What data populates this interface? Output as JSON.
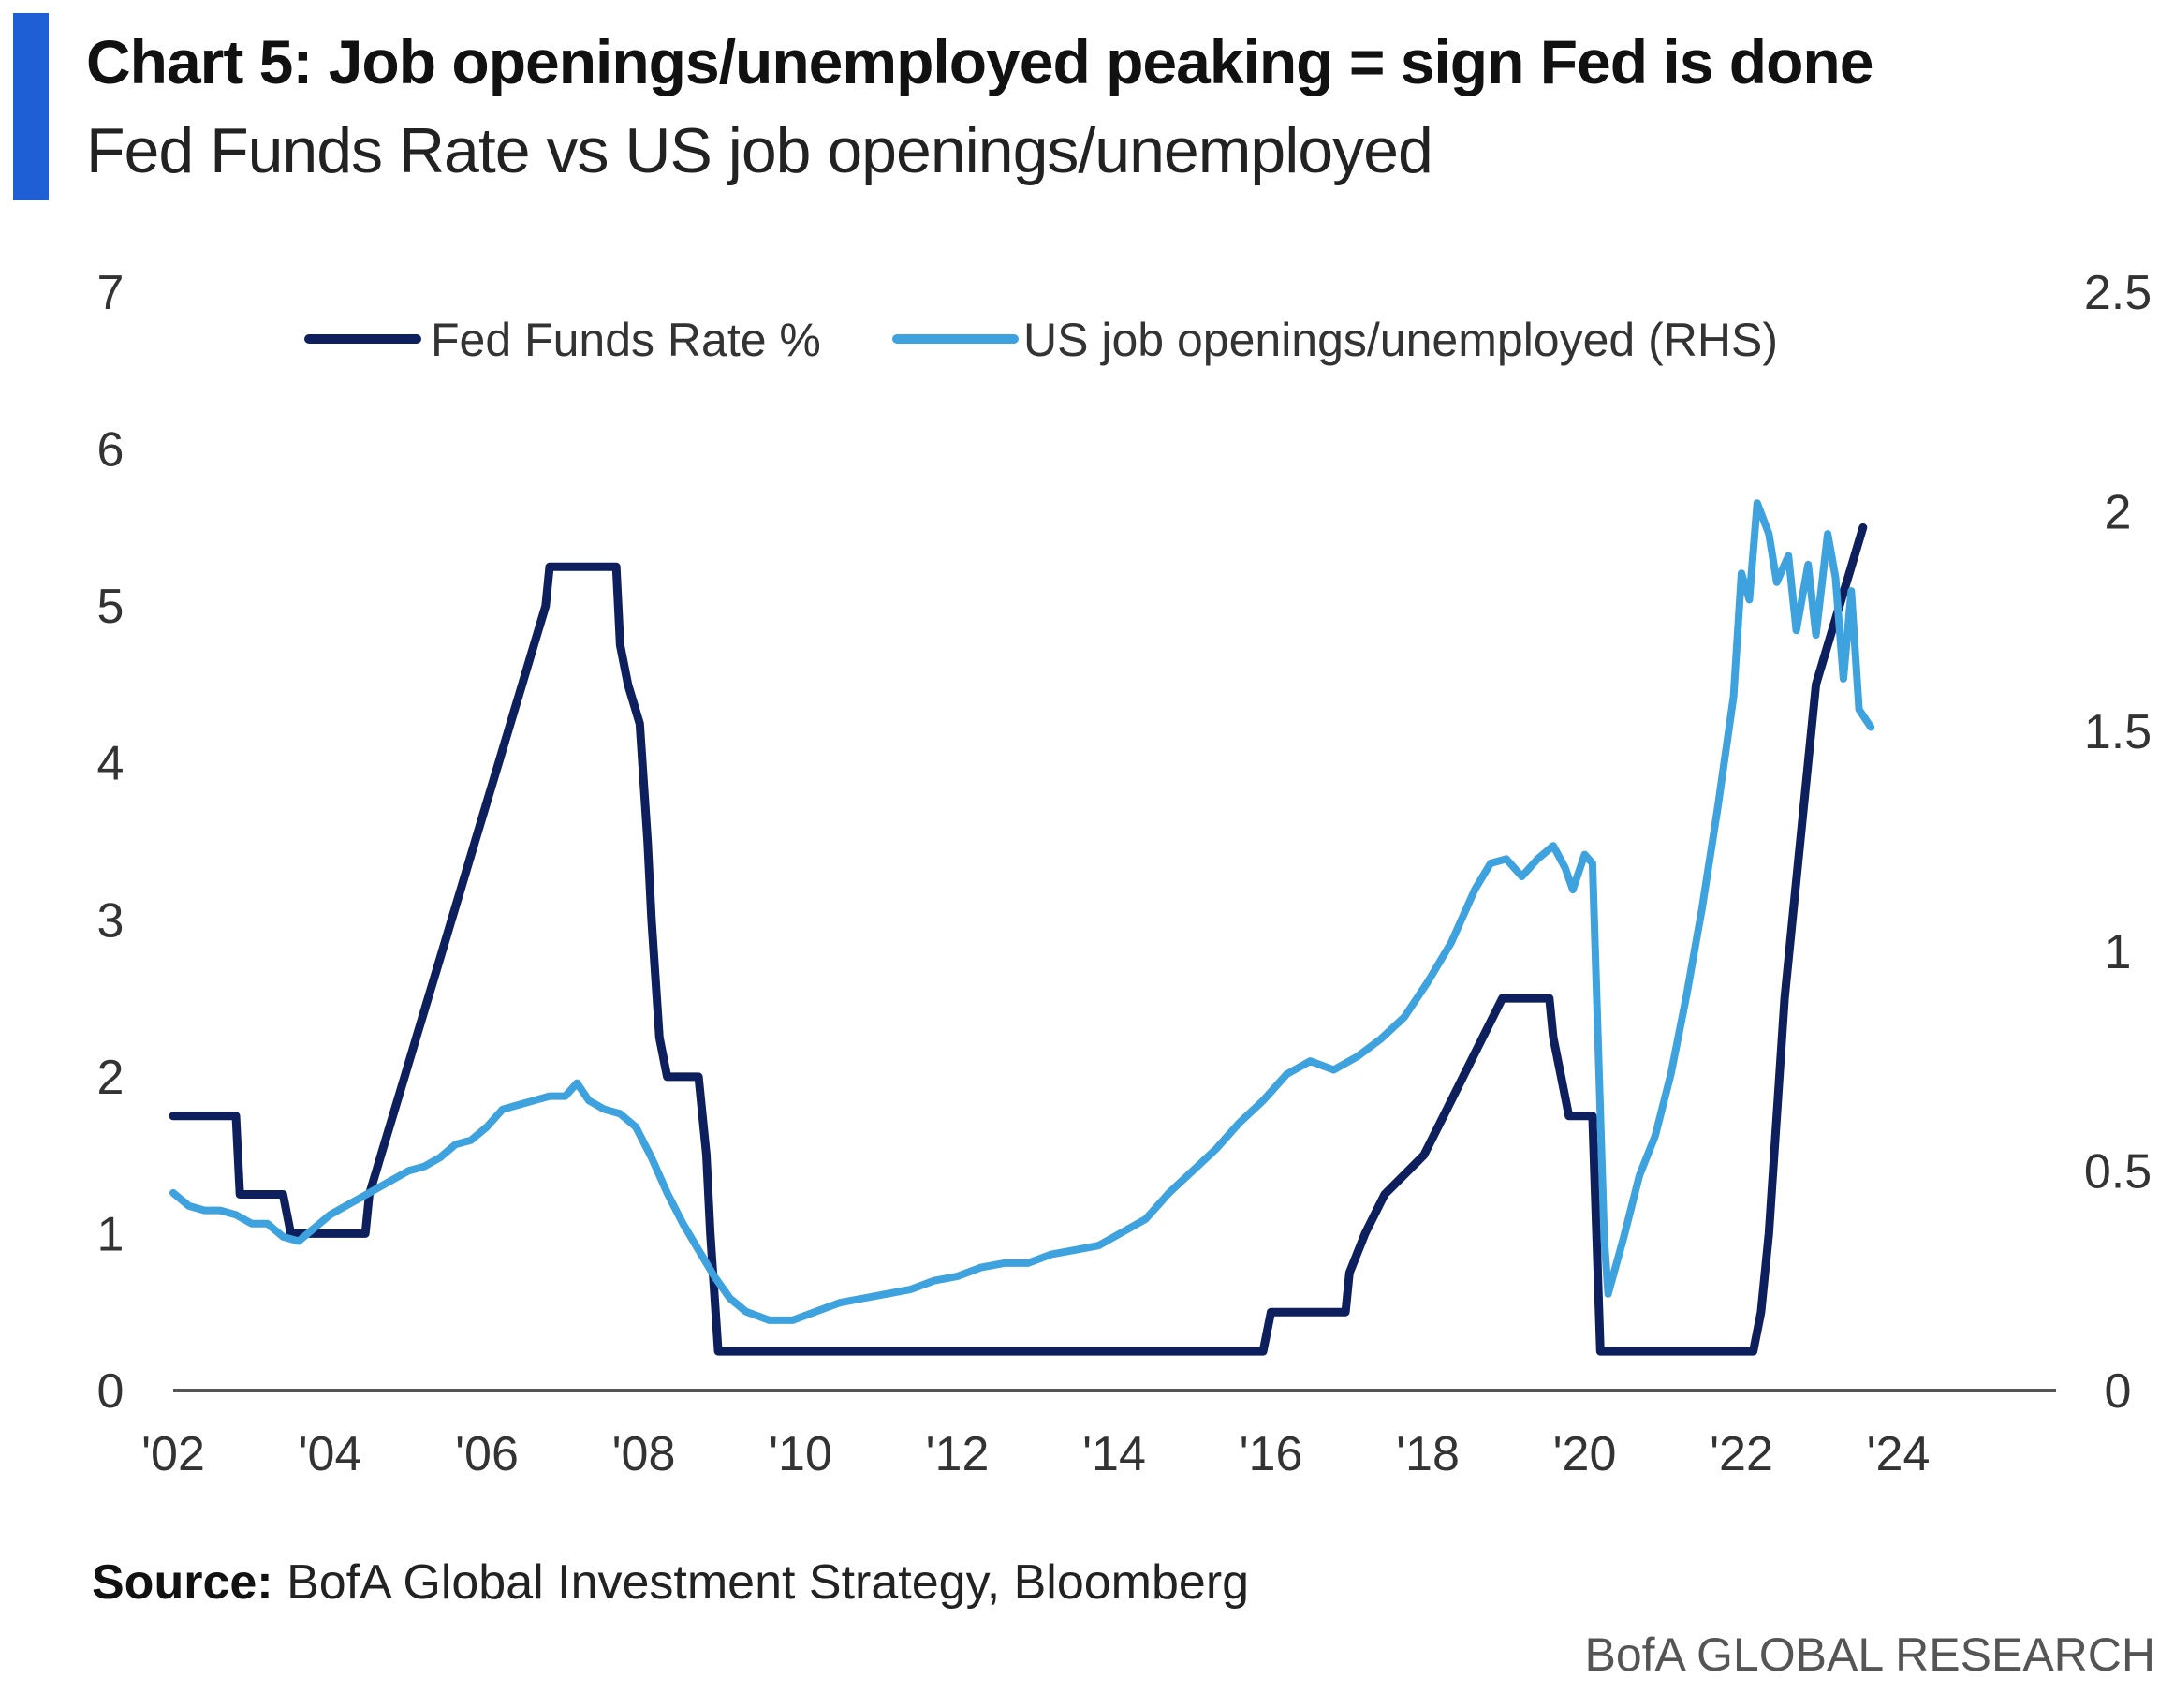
{
  "header": {
    "title": "Chart 5: Job openings/unemployed peaking = sign Fed is done",
    "subtitle": "Fed Funds Rate vs US job openings/unemployed",
    "accent_color": "#1f5fd6"
  },
  "footer": {
    "source_label": "Source:",
    "source_text": "BofA Global Investment Strategy, Bloomberg",
    "brand": "BofA GLOBAL RESEARCH"
  },
  "chart_data": {
    "type": "line",
    "title": "Chart 5: Job openings/unemployed peaking = sign Fed is done",
    "subtitle": "Fed Funds Rate vs US job openings/unemployed",
    "x_tick_labels": [
      "'02",
      "'04",
      "'06",
      "'08",
      "'10",
      "'12",
      "'14",
      "'16",
      "'18",
      "'20",
      "'22",
      "'24"
    ],
    "x_ticks": [
      2002,
      2004,
      2006,
      2008,
      2010,
      2012,
      2014,
      2016,
      2018,
      2020,
      2022,
      2024
    ],
    "xlim": [
      2002,
      2026.0
    ],
    "y_left": {
      "ticks": [
        0,
        1,
        2,
        3,
        4,
        5,
        6,
        7
      ],
      "ylim": [
        0,
        7
      ]
    },
    "y_right": {
      "ticks": [
        "0",
        "0.5",
        "1",
        "1.5",
        "2",
        "2.5"
      ],
      "values": [
        0,
        0.5,
        1,
        1.5,
        2,
        2.5
      ],
      "ylim": [
        0,
        2.5
      ]
    },
    "legend_position": "top",
    "grid": false,
    "series": [
      {
        "name": "Fed Funds Rate %",
        "axis": "left",
        "color": "#0d1f5c",
        "points": [
          [
            2002.0,
            1.75
          ],
          [
            2002.8,
            1.75
          ],
          [
            2002.85,
            1.25
          ],
          [
            2003.4,
            1.25
          ],
          [
            2003.5,
            1.0
          ],
          [
            2004.45,
            1.0
          ],
          [
            2004.5,
            1.25
          ],
          [
            2004.65,
            1.5
          ],
          [
            2004.8,
            1.75
          ],
          [
            2004.95,
            2.0
          ],
          [
            2005.1,
            2.25
          ],
          [
            2005.25,
            2.5
          ],
          [
            2005.4,
            2.75
          ],
          [
            2005.55,
            3.0
          ],
          [
            2005.7,
            3.25
          ],
          [
            2005.85,
            3.5
          ],
          [
            2006.0,
            3.75
          ],
          [
            2006.15,
            4.0
          ],
          [
            2006.3,
            4.25
          ],
          [
            2006.45,
            4.5
          ],
          [
            2006.6,
            4.75
          ],
          [
            2006.75,
            5.0
          ],
          [
            2006.8,
            5.25
          ],
          [
            2007.65,
            5.25
          ],
          [
            2007.7,
            4.75
          ],
          [
            2007.8,
            4.5
          ],
          [
            2007.95,
            4.25
          ],
          [
            2008.05,
            3.5
          ],
          [
            2008.1,
            3.0
          ],
          [
            2008.2,
            2.25
          ],
          [
            2008.3,
            2.0
          ],
          [
            2008.7,
            2.0
          ],
          [
            2008.8,
            1.5
          ],
          [
            2008.85,
            1.0
          ],
          [
            2008.95,
            0.25
          ],
          [
            2015.9,
            0.25
          ],
          [
            2016.0,
            0.5
          ],
          [
            2016.95,
            0.5
          ],
          [
            2017.0,
            0.75
          ],
          [
            2017.2,
            1.0
          ],
          [
            2017.45,
            1.25
          ],
          [
            2017.95,
            1.5
          ],
          [
            2018.2,
            1.75
          ],
          [
            2018.45,
            2.0
          ],
          [
            2018.7,
            2.25
          ],
          [
            2018.95,
            2.5
          ],
          [
            2019.55,
            2.5
          ],
          [
            2019.6,
            2.25
          ],
          [
            2019.7,
            2.0
          ],
          [
            2019.8,
            1.75
          ],
          [
            2020.1,
            1.75
          ],
          [
            2020.2,
            0.25
          ],
          [
            2022.15,
            0.25
          ],
          [
            2022.25,
            0.5
          ],
          [
            2022.35,
            1.0
          ],
          [
            2022.45,
            1.75
          ],
          [
            2022.55,
            2.5
          ],
          [
            2022.7,
            3.25
          ],
          [
            2022.85,
            4.0
          ],
          [
            2022.95,
            4.5
          ],
          [
            2023.1,
            4.75
          ],
          [
            2023.25,
            5.0
          ],
          [
            2023.4,
            5.25
          ],
          [
            2023.55,
            5.5
          ]
        ]
      },
      {
        "name": "US job openings/unemployed (RHS)",
        "axis": "right",
        "color": "#3ea2de",
        "points": [
          [
            2002.0,
            0.45
          ],
          [
            2002.2,
            0.42
          ],
          [
            2002.4,
            0.41
          ],
          [
            2002.6,
            0.41
          ],
          [
            2002.8,
            0.4
          ],
          [
            2003.0,
            0.38
          ],
          [
            2003.2,
            0.38
          ],
          [
            2003.4,
            0.35
          ],
          [
            2003.6,
            0.34
          ],
          [
            2003.8,
            0.37
          ],
          [
            2004.0,
            0.4
          ],
          [
            2004.2,
            0.42
          ],
          [
            2004.4,
            0.44
          ],
          [
            2004.6,
            0.46
          ],
          [
            2004.8,
            0.48
          ],
          [
            2005.0,
            0.5
          ],
          [
            2005.2,
            0.51
          ],
          [
            2005.4,
            0.53
          ],
          [
            2005.6,
            0.56
          ],
          [
            2005.8,
            0.57
          ],
          [
            2006.0,
            0.6
          ],
          [
            2006.2,
            0.64
          ],
          [
            2006.4,
            0.65
          ],
          [
            2006.6,
            0.66
          ],
          [
            2006.8,
            0.67
          ],
          [
            2007.0,
            0.67
          ],
          [
            2007.15,
            0.7
          ],
          [
            2007.3,
            0.66
          ],
          [
            2007.5,
            0.64
          ],
          [
            2007.7,
            0.63
          ],
          [
            2007.9,
            0.6
          ],
          [
            2008.1,
            0.53
          ],
          [
            2008.3,
            0.45
          ],
          [
            2008.5,
            0.38
          ],
          [
            2008.7,
            0.32
          ],
          [
            2008.9,
            0.26
          ],
          [
            2009.1,
            0.21
          ],
          [
            2009.3,
            0.18
          ],
          [
            2009.6,
            0.16
          ],
          [
            2009.9,
            0.16
          ],
          [
            2010.2,
            0.18
          ],
          [
            2010.5,
            0.2
          ],
          [
            2010.8,
            0.21
          ],
          [
            2011.1,
            0.22
          ],
          [
            2011.4,
            0.23
          ],
          [
            2011.7,
            0.25
          ],
          [
            2012.0,
            0.26
          ],
          [
            2012.3,
            0.28
          ],
          [
            2012.6,
            0.29
          ],
          [
            2012.9,
            0.29
          ],
          [
            2013.2,
            0.31
          ],
          [
            2013.5,
            0.32
          ],
          [
            2013.8,
            0.33
          ],
          [
            2014.1,
            0.36
          ],
          [
            2014.4,
            0.39
          ],
          [
            2014.7,
            0.45
          ],
          [
            2015.0,
            0.5
          ],
          [
            2015.3,
            0.55
          ],
          [
            2015.6,
            0.61
          ],
          [
            2015.9,
            0.66
          ],
          [
            2016.2,
            0.72
          ],
          [
            2016.5,
            0.75
          ],
          [
            2016.8,
            0.73
          ],
          [
            2017.1,
            0.76
          ],
          [
            2017.4,
            0.8
          ],
          [
            2017.7,
            0.85
          ],
          [
            2018.0,
            0.93
          ],
          [
            2018.3,
            1.02
          ],
          [
            2018.6,
            1.14
          ],
          [
            2018.8,
            1.2
          ],
          [
            2019.0,
            1.21
          ],
          [
            2019.2,
            1.17
          ],
          [
            2019.4,
            1.21
          ],
          [
            2019.6,
            1.24
          ],
          [
            2019.75,
            1.19
          ],
          [
            2019.85,
            1.14
          ],
          [
            2020.0,
            1.22
          ],
          [
            2020.1,
            1.2
          ],
          [
            2020.25,
            0.35
          ],
          [
            2020.3,
            0.22
          ],
          [
            2020.5,
            0.35
          ],
          [
            2020.7,
            0.49
          ],
          [
            2020.9,
            0.58
          ],
          [
            2021.1,
            0.72
          ],
          [
            2021.3,
            0.9
          ],
          [
            2021.5,
            1.1
          ],
          [
            2021.7,
            1.33
          ],
          [
            2021.9,
            1.58
          ],
          [
            2022.0,
            1.86
          ],
          [
            2022.1,
            1.8
          ],
          [
            2022.2,
            2.02
          ],
          [
            2022.35,
            1.95
          ],
          [
            2022.45,
            1.84
          ],
          [
            2022.6,
            1.9
          ],
          [
            2022.7,
            1.73
          ],
          [
            2022.85,
            1.88
          ],
          [
            2022.95,
            1.72
          ],
          [
            2023.1,
            1.95
          ],
          [
            2023.2,
            1.85
          ],
          [
            2023.3,
            1.62
          ],
          [
            2023.4,
            1.82
          ],
          [
            2023.5,
            1.55
          ],
          [
            2023.65,
            1.51
          ]
        ]
      }
    ]
  }
}
